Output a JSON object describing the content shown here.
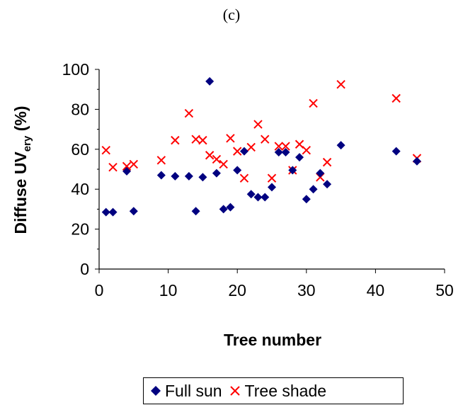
{
  "panel_label": "(c)",
  "chart_data": {
    "type": "scatter",
    "title": "",
    "xlabel": "Tree number",
    "ylabel_main": "Diffuse UV",
    "ylabel_sub": "ery",
    "ylabel_unit": " (%)",
    "xlim": [
      0,
      50
    ],
    "ylim": [
      0,
      100
    ],
    "xticks": [
      0,
      10,
      20,
      30,
      40,
      50
    ],
    "yticks": [
      0,
      20,
      40,
      60,
      80,
      100
    ],
    "grid": false,
    "legend_position": "bottom",
    "colors": {
      "full_sun": "#000080",
      "tree_shade": "#ff0000"
    },
    "series": [
      {
        "name": "Full sun",
        "marker": "diamond",
        "points": [
          [
            1,
            28.5
          ],
          [
            2,
            28.5
          ],
          [
            4,
            49
          ],
          [
            5,
            29
          ],
          [
            9,
            47
          ],
          [
            11,
            46.5
          ],
          [
            13,
            46.5
          ],
          [
            14,
            29
          ],
          [
            15,
            46
          ],
          [
            16,
            94
          ],
          [
            17,
            48
          ],
          [
            18,
            30
          ],
          [
            19,
            31
          ],
          [
            20,
            49.5
          ],
          [
            21,
            59
          ],
          [
            22,
            37.5
          ],
          [
            23,
            36
          ],
          [
            24,
            36
          ],
          [
            25,
            41
          ],
          [
            26,
            58.5
          ],
          [
            27,
            58.5
          ],
          [
            28,
            49.5
          ],
          [
            29,
            56
          ],
          [
            30,
            35
          ],
          [
            31,
            40
          ],
          [
            32,
            48
          ],
          [
            33,
            42.5
          ],
          [
            35,
            62
          ],
          [
            43,
            59
          ],
          [
            46,
            54
          ]
        ]
      },
      {
        "name": "Tree shade",
        "marker": "x",
        "points": [
          [
            1,
            59.5
          ],
          [
            2,
            51
          ],
          [
            4,
            51.5
          ],
          [
            5,
            52.5
          ],
          [
            9,
            54.5
          ],
          [
            11,
            64.5
          ],
          [
            13,
            78
          ],
          [
            14,
            65
          ],
          [
            15,
            64.5
          ],
          [
            16,
            57
          ],
          [
            17,
            55
          ],
          [
            18,
            52.5
          ],
          [
            19,
            65.5
          ],
          [
            20,
            59
          ],
          [
            21,
            45.5
          ],
          [
            22,
            61
          ],
          [
            23,
            72.5
          ],
          [
            24,
            65
          ],
          [
            25,
            45.5
          ],
          [
            26,
            61.5
          ],
          [
            27,
            61.5
          ],
          [
            28,
            49.5
          ],
          [
            29,
            62.5
          ],
          [
            30,
            59.5
          ],
          [
            31,
            83
          ],
          [
            32,
            46
          ],
          [
            33,
            53.5
          ],
          [
            35,
            92.5
          ],
          [
            43,
            85.5
          ],
          [
            46,
            55.5
          ]
        ]
      }
    ]
  }
}
